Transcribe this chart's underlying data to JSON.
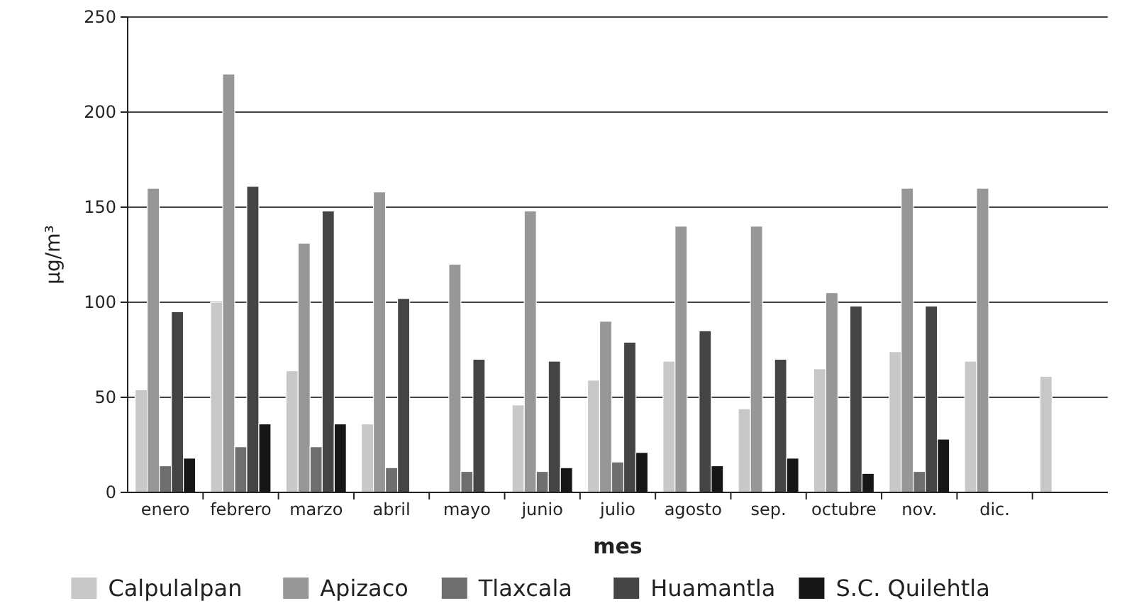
{
  "chart_data": {
    "type": "bar",
    "xlabel": "mes",
    "ylabel": "µg/m³",
    "categories": [
      "enero",
      "febrero",
      "marzo",
      "abril",
      "mayo",
      "junio",
      "julio",
      "agosto",
      "sep.",
      "octubre",
      "nov.",
      "dic.",
      null
    ],
    "ylim": [
      0,
      250
    ],
    "yticks": [
      0,
      50,
      100,
      150,
      200,
      250
    ],
    "grid": "y",
    "legend": "bottom",
    "series": [
      {
        "name": "Calpulalpan",
        "color": "#c8c8c8",
        "values": [
          54,
          100,
          64,
          36,
          null,
          46,
          59,
          69,
          44,
          65,
          74,
          69,
          61
        ]
      },
      {
        "name": "Apizaco",
        "color": "#979797",
        "values": [
          160,
          220,
          131,
          158,
          120,
          148,
          90,
          140,
          140,
          105,
          160,
          160,
          null
        ]
      },
      {
        "name": "Tlaxcala",
        "color": "#6e6e6e",
        "values": [
          14,
          24,
          24,
          13,
          11,
          11,
          16,
          null,
          null,
          null,
          11,
          null,
          null
        ]
      },
      {
        "name": "Huamantla",
        "color": "#444444",
        "values": [
          95,
          161,
          148,
          102,
          70,
          69,
          79,
          85,
          70,
          98,
          98,
          null,
          null
        ]
      },
      {
        "name": "S.C. Quilehtla",
        "color": "#161616",
        "values": [
          18,
          36,
          36,
          null,
          null,
          13,
          21,
          14,
          18,
          10,
          28,
          null,
          null
        ]
      }
    ]
  }
}
